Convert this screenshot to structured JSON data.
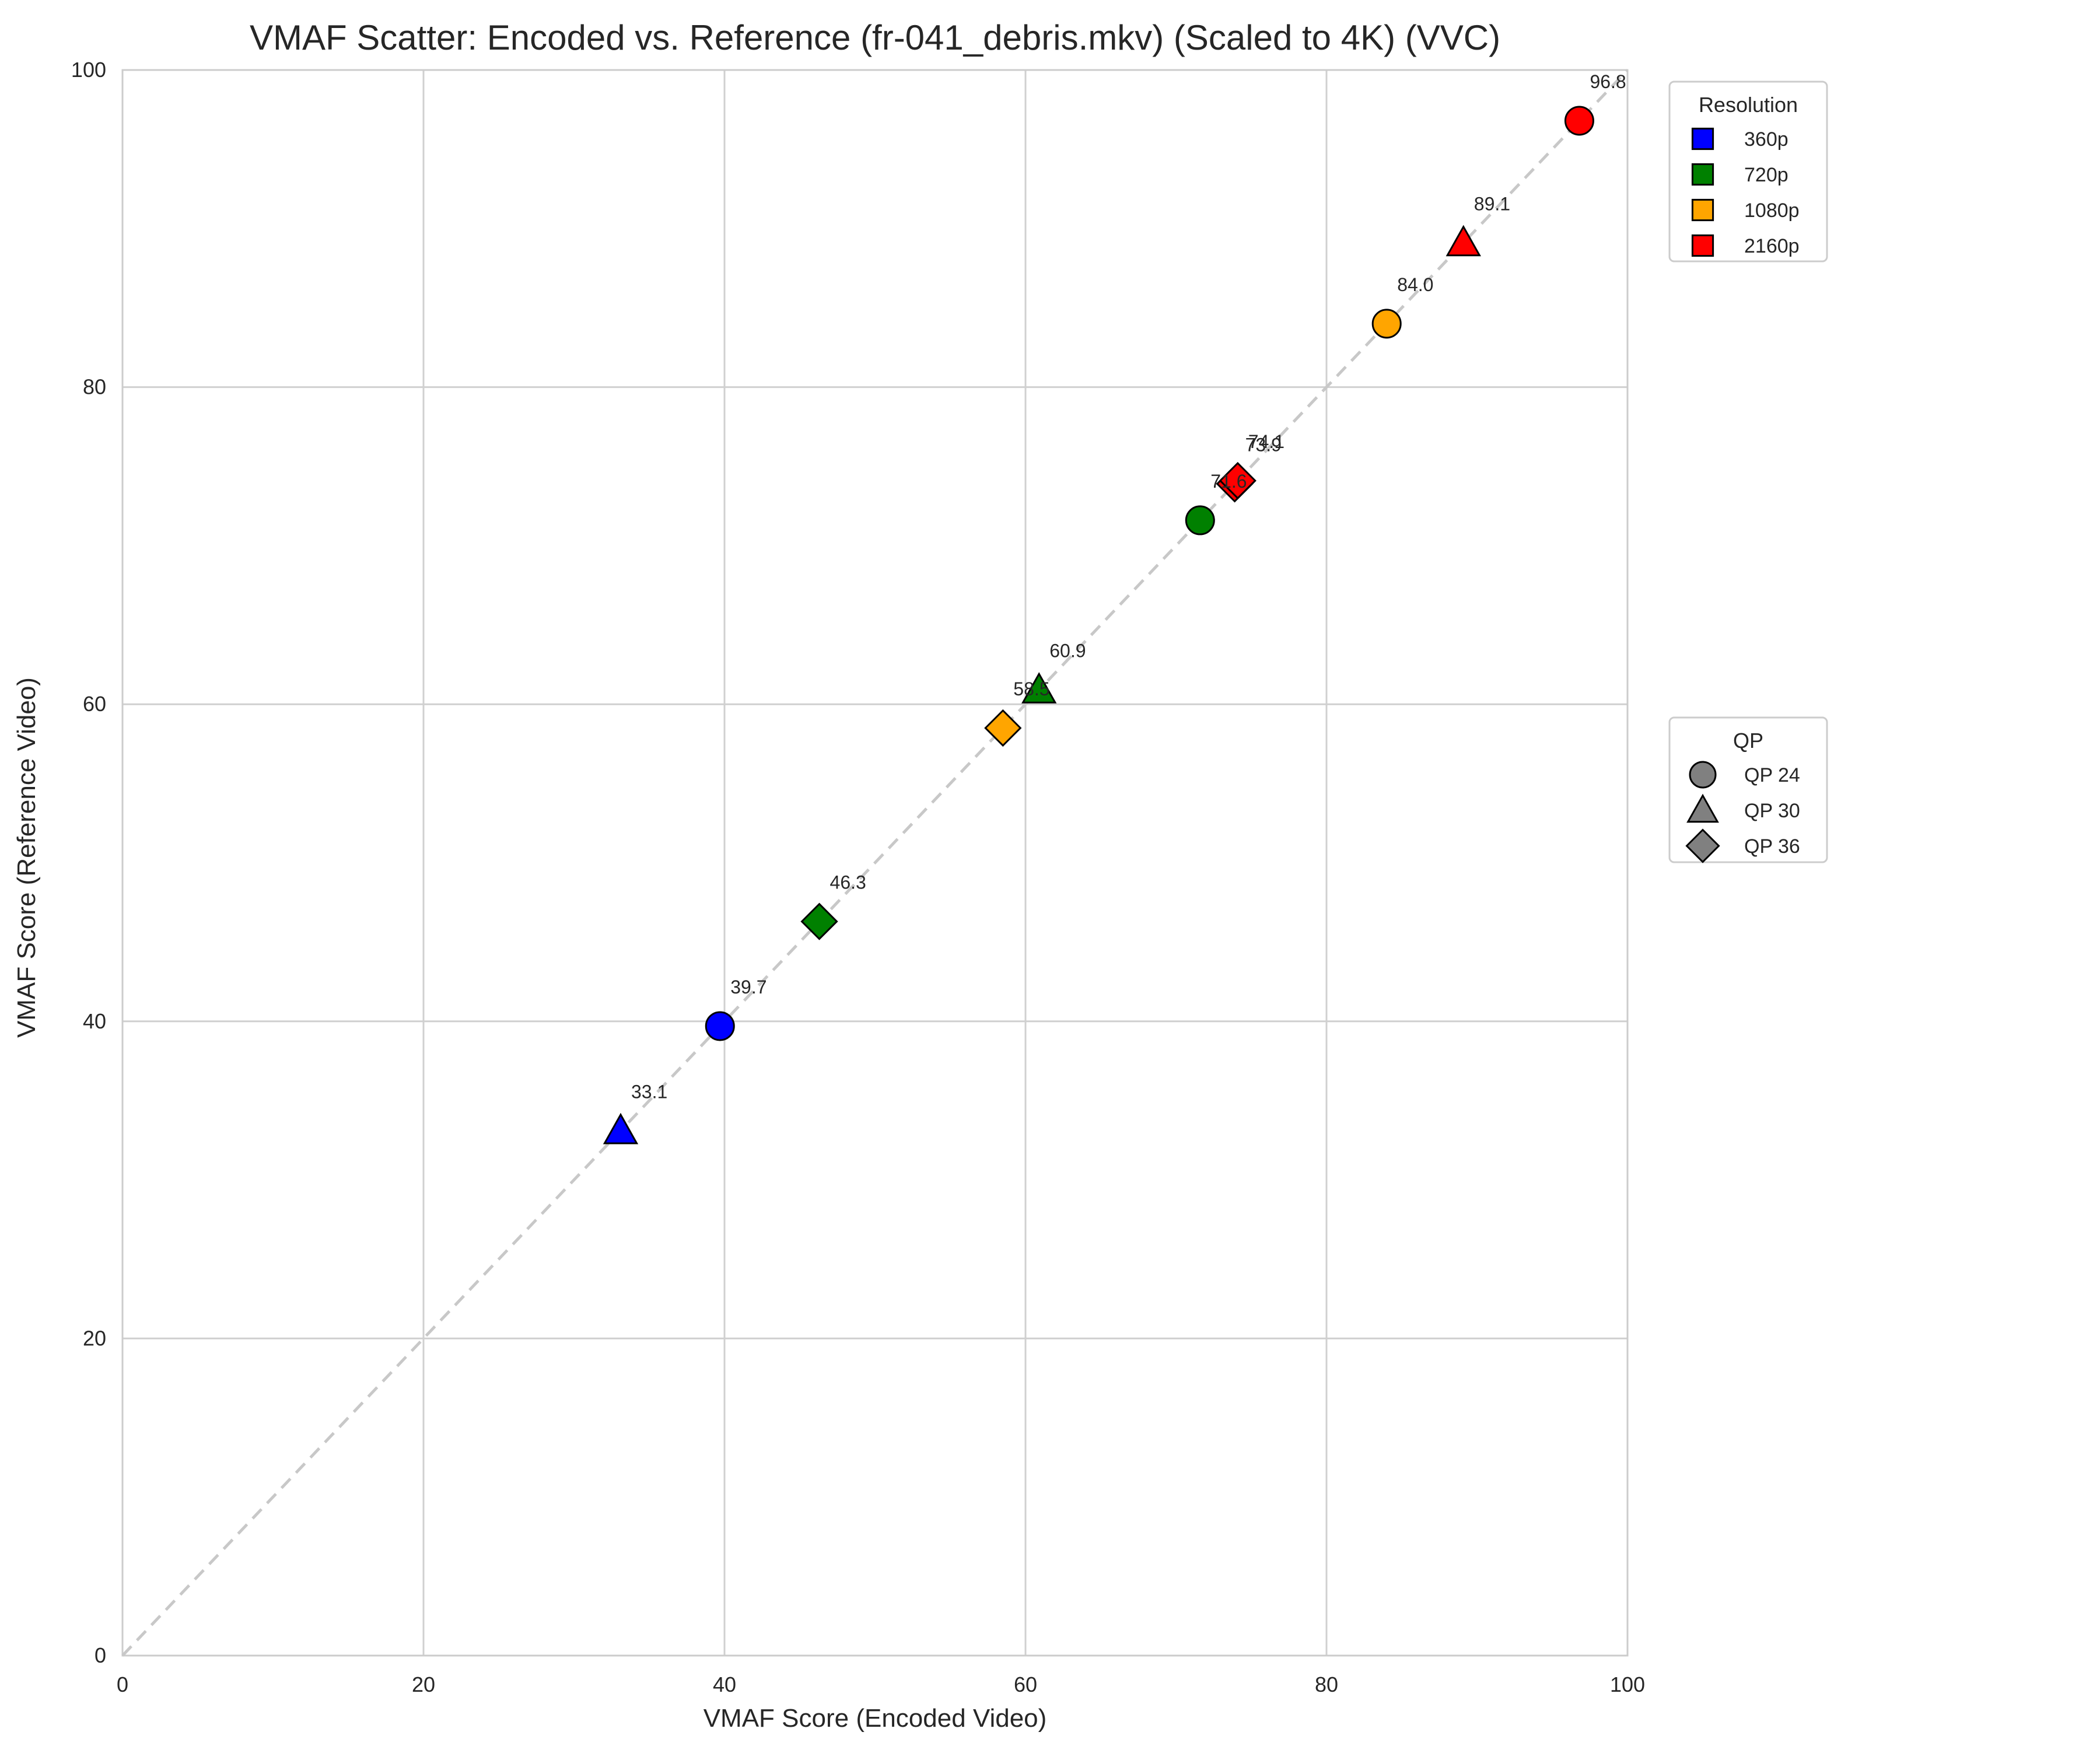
{
  "chart_data": {
    "type": "scatter",
    "title": "VMAF Scatter: Encoded vs. Reference (fr-041_debris.mkv) (Scaled to 4K) (VVC)",
    "xlabel": "VMAF Score (Encoded Video)",
    "ylabel": "VMAF Score (Reference Video)",
    "xlim": [
      0,
      100
    ],
    "ylim": [
      0,
      100
    ],
    "xticks": [
      "0",
      "20",
      "40",
      "60",
      "80",
      "100"
    ],
    "yticks": [
      "0",
      "20",
      "40",
      "60",
      "80",
      "100"
    ],
    "grid": true,
    "reference_line": {
      "from": [
        0,
        0
      ],
      "to": [
        100,
        100
      ],
      "style": "dashed",
      "color": "#c8c8c8"
    },
    "legends": [
      {
        "title": "Resolution",
        "placement": "outside-top-right",
        "entries": [
          {
            "label": "360p",
            "color": "#0000ff",
            "marker": "square"
          },
          {
            "label": "720p",
            "color": "#008000",
            "marker": "square"
          },
          {
            "label": "1080p",
            "color": "#ffa500",
            "marker": "square"
          },
          {
            "label": "2160p",
            "color": "#ff0000",
            "marker": "square"
          }
        ]
      },
      {
        "title": "QP",
        "placement": "outside-middle-right",
        "entries": [
          {
            "label": "QP 24",
            "color": "#808080",
            "marker": "circle"
          },
          {
            "label": "QP 30",
            "color": "#808080",
            "marker": "triangle"
          },
          {
            "label": "QP 36",
            "color": "#808080",
            "marker": "diamond"
          }
        ]
      }
    ],
    "points": [
      {
        "resolution": "360p",
        "qp": "QP 24",
        "x": 39.7,
        "y": 39.7,
        "label": "39.7",
        "color": "#0000ff",
        "marker": "circle"
      },
      {
        "resolution": "360p",
        "qp": "QP 30",
        "x": 33.1,
        "y": 33.1,
        "label": "33.1",
        "color": "#0000ff",
        "marker": "triangle"
      },
      {
        "resolution": "720p",
        "qp": "QP 24",
        "x": 71.6,
        "y": 71.6,
        "label": "71.6",
        "color": "#008000",
        "marker": "circle"
      },
      {
        "resolution": "720p",
        "qp": "QP 30",
        "x": 60.9,
        "y": 60.9,
        "label": "60.9",
        "color": "#008000",
        "marker": "triangle"
      },
      {
        "resolution": "720p",
        "qp": "QP 36",
        "x": 46.3,
        "y": 46.3,
        "label": "46.3",
        "color": "#008000",
        "marker": "diamond"
      },
      {
        "resolution": "1080p",
        "qp": "QP 24",
        "x": 84.0,
        "y": 84.0,
        "label": "84.0",
        "color": "#ffa500",
        "marker": "circle"
      },
      {
        "resolution": "1080p",
        "qp": "QP 36",
        "x": 58.5,
        "y": 58.5,
        "label": "58.5",
        "color": "#ffa500",
        "marker": "diamond"
      },
      {
        "resolution": "2160p",
        "qp": "QP 24",
        "x": 96.8,
        "y": 96.8,
        "label": "96.8",
        "color": "#ff0000",
        "marker": "circle"
      },
      {
        "resolution": "2160p",
        "qp": "QP 30",
        "x": 89.1,
        "y": 89.1,
        "label": "89.1",
        "color": "#ff0000",
        "marker": "triangle"
      },
      {
        "resolution": "2160p",
        "qp": "QP 36",
        "x": 73.9,
        "y": 73.9,
        "label": "73.9",
        "color": "#ff0000",
        "marker": "diamond"
      },
      {
        "resolution": "2160p",
        "qp": "QP 36",
        "x": 74.1,
        "y": 74.1,
        "label": "74.1",
        "color": "#ff0000",
        "marker": "diamond"
      }
    ]
  }
}
